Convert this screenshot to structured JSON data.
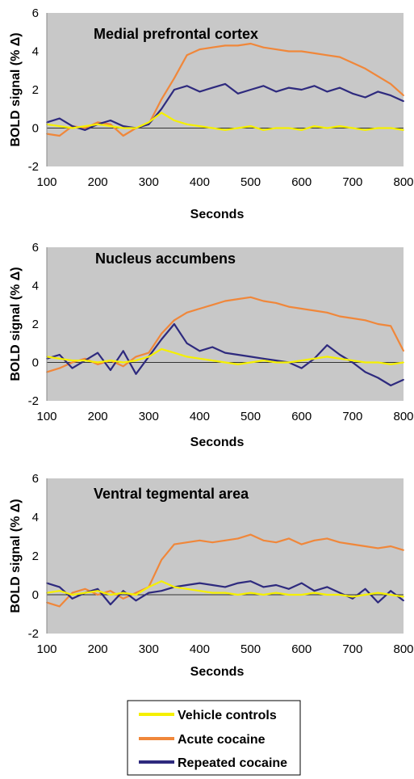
{
  "chart_data": [
    {
      "type": "line",
      "title": "Medial prefrontal cortex",
      "xlabel": "Seconds",
      "ylabel": "BOLD signal (% Δ)",
      "xlim": [
        100,
        800
      ],
      "ylim": [
        -2,
        6
      ],
      "xticks": [
        "100",
        "200",
        "300",
        "400",
        "500",
        "600",
        "700",
        "800"
      ],
      "yticks": [
        "-2",
        "0",
        "2",
        "4",
        "6"
      ],
      "x": [
        100,
        125,
        150,
        175,
        200,
        225,
        250,
        275,
        300,
        325,
        350,
        375,
        400,
        425,
        450,
        475,
        500,
        525,
        550,
        575,
        600,
        625,
        650,
        675,
        700,
        725,
        750,
        775,
        800
      ],
      "series": [
        {
          "name": "Vehicle controls",
          "values": [
            0.2,
            0.1,
            0.0,
            0.1,
            0.2,
            0.1,
            0.0,
            0.0,
            0.3,
            0.8,
            0.4,
            0.2,
            0.1,
            0.0,
            -0.1,
            0.0,
            0.1,
            -0.1,
            0.0,
            0.0,
            -0.1,
            0.1,
            0.0,
            0.1,
            0.0,
            -0.1,
            0.0,
            0.0,
            -0.1
          ]
        },
        {
          "name": "Acute cocaine",
          "values": [
            -0.3,
            -0.4,
            0.1,
            0.0,
            0.3,
            0.2,
            -0.4,
            0.0,
            0.2,
            1.5,
            2.6,
            3.8,
            4.1,
            4.2,
            4.3,
            4.3,
            4.4,
            4.2,
            4.1,
            4.0,
            4.0,
            3.9,
            3.8,
            3.7,
            3.4,
            3.1,
            2.7,
            2.3,
            1.7
          ]
        },
        {
          "name": "Repeated cocaine",
          "values": [
            0.3,
            0.5,
            0.1,
            -0.1,
            0.2,
            0.4,
            0.1,
            0.0,
            0.2,
            1.0,
            2.0,
            2.2,
            1.9,
            2.1,
            2.3,
            1.8,
            2.0,
            2.2,
            1.9,
            2.1,
            2.0,
            2.2,
            1.9,
            2.1,
            1.8,
            1.6,
            1.9,
            1.7,
            1.4
          ]
        }
      ]
    },
    {
      "type": "line",
      "title": "Nucleus accumbens",
      "xlabel": "Seconds",
      "ylabel": "BOLD signal (% Δ)",
      "xlim": [
        100,
        800
      ],
      "ylim": [
        -2,
        6
      ],
      "xticks": [
        "100",
        "200",
        "300",
        "400",
        "500",
        "600",
        "700",
        "800"
      ],
      "yticks": [
        "-2",
        "0",
        "2",
        "4",
        "6"
      ],
      "x": [
        100,
        125,
        150,
        175,
        200,
        225,
        250,
        275,
        300,
        325,
        350,
        375,
        400,
        425,
        450,
        475,
        500,
        525,
        550,
        575,
        600,
        625,
        650,
        675,
        700,
        725,
        750,
        775,
        800
      ],
      "series": [
        {
          "name": "Vehicle controls",
          "values": [
            0.3,
            0.2,
            0.1,
            0.1,
            0.0,
            0.1,
            0.0,
            0.1,
            0.3,
            0.7,
            0.5,
            0.3,
            0.2,
            0.1,
            0.0,
            -0.1,
            0.0,
            0.1,
            0.0,
            0.0,
            0.1,
            0.2,
            0.3,
            0.2,
            0.1,
            0.0,
            0.0,
            -0.1,
            0.0
          ]
        },
        {
          "name": "Acute cocaine",
          "values": [
            -0.5,
            -0.3,
            0.0,
            0.2,
            -0.1,
            0.1,
            -0.2,
            0.3,
            0.5,
            1.5,
            2.2,
            2.6,
            2.8,
            3.0,
            3.2,
            3.3,
            3.4,
            3.2,
            3.1,
            2.9,
            2.8,
            2.7,
            2.6,
            2.4,
            2.3,
            2.2,
            2.0,
            1.9,
            0.6
          ]
        },
        {
          "name": "Repeated cocaine",
          "values": [
            0.2,
            0.4,
            -0.3,
            0.1,
            0.5,
            -0.4,
            0.6,
            -0.6,
            0.3,
            1.2,
            2.0,
            1.0,
            0.6,
            0.8,
            0.5,
            0.4,
            0.3,
            0.2,
            0.1,
            0.0,
            -0.3,
            0.2,
            0.9,
            0.4,
            0.0,
            -0.5,
            -0.8,
            -1.2,
            -0.9
          ]
        }
      ]
    },
    {
      "type": "line",
      "title": "Ventral tegmental area",
      "xlabel": "Seconds",
      "ylabel": "BOLD signal (% Δ)",
      "xlim": [
        100,
        800
      ],
      "ylim": [
        -2,
        6
      ],
      "xticks": [
        "100",
        "200",
        "300",
        "400",
        "500",
        "600",
        "700",
        "800"
      ],
      "yticks": [
        "-2",
        "0",
        "2",
        "4",
        "6"
      ],
      "x": [
        100,
        125,
        150,
        175,
        200,
        225,
        250,
        275,
        300,
        325,
        350,
        375,
        400,
        425,
        450,
        475,
        500,
        525,
        550,
        575,
        600,
        625,
        650,
        675,
        700,
        725,
        750,
        775,
        800
      ],
      "series": [
        {
          "name": "Vehicle controls",
          "values": [
            0.1,
            0.2,
            0.0,
            0.1,
            0.2,
            0.0,
            0.1,
            0.0,
            0.4,
            0.7,
            0.4,
            0.3,
            0.2,
            0.1,
            0.1,
            0.0,
            0.1,
            0.0,
            0.1,
            0.0,
            0.0,
            0.1,
            0.0,
            0.0,
            -0.1,
            0.0,
            0.1,
            0.0,
            -0.1
          ]
        },
        {
          "name": "Acute cocaine",
          "values": [
            -0.4,
            -0.6,
            0.1,
            0.3,
            0.0,
            0.2,
            -0.2,
            0.1,
            0.4,
            1.8,
            2.6,
            2.7,
            2.8,
            2.7,
            2.8,
            2.9,
            3.1,
            2.8,
            2.7,
            2.9,
            2.6,
            2.8,
            2.9,
            2.7,
            2.6,
            2.5,
            2.4,
            2.5,
            2.3
          ]
        },
        {
          "name": "Repeated cocaine",
          "values": [
            0.6,
            0.4,
            -0.2,
            0.1,
            0.3,
            -0.5,
            0.2,
            -0.3,
            0.1,
            0.2,
            0.4,
            0.5,
            0.6,
            0.5,
            0.4,
            0.6,
            0.7,
            0.4,
            0.5,
            0.3,
            0.6,
            0.2,
            0.4,
            0.1,
            -0.2,
            0.3,
            -0.4,
            0.2,
            -0.3
          ]
        }
      ]
    }
  ],
  "legend": {
    "items": [
      {
        "label": "Vehicle controls",
        "color": "#f5f000"
      },
      {
        "label": "Acute cocaine",
        "color": "#f0873a"
      },
      {
        "label": "Repeated cocaine",
        "color": "#2e2a7e"
      }
    ]
  },
  "colors": {
    "plot_background": "#c8c8c8",
    "zero_line": "#333333",
    "vehicle": "#f5f000",
    "acute": "#f0873a",
    "repeated": "#2e2a7e"
  }
}
